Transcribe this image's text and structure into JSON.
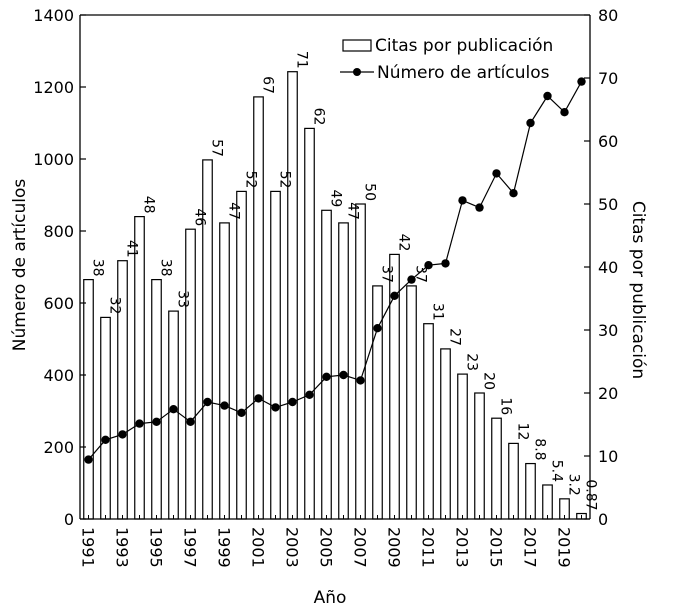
{
  "chart_data": {
    "type": "bar+line",
    "xlabel": "Año",
    "ylabel_left": "Número de artículos",
    "ylabel_right": "Citas por publicación",
    "ylim_left": [
      0,
      1400
    ],
    "ylim_right": [
      0,
      80
    ],
    "yticks_left": [
      "0",
      "200",
      "400",
      "600",
      "800",
      "1000",
      "1200",
      "1400"
    ],
    "yticks_right": [
      "0",
      "10",
      "20",
      "30",
      "40",
      "50",
      "60",
      "70",
      "80"
    ],
    "categories": [
      1991,
      1992,
      1993,
      1994,
      1995,
      1996,
      1997,
      1998,
      1999,
      2000,
      2001,
      2002,
      2003,
      2004,
      2005,
      2006,
      2007,
      2008,
      2009,
      2010,
      2011,
      2012,
      2013,
      2014,
      2015,
      2016,
      2017,
      2018,
      2019,
      2020
    ],
    "xtick_labels": [
      "1991",
      "1993",
      "1995",
      "1997",
      "1999",
      "2001",
      "2003",
      "2005",
      "2007",
      "2009",
      "2011",
      "2013",
      "2015",
      "2017",
      "2019"
    ],
    "legend": {
      "position": "top-right",
      "entries": [
        "Citas por publicación",
        "Número de artículos"
      ]
    },
    "series": [
      {
        "name": "Citas por publicación",
        "type": "bar",
        "axis": "right",
        "values": [
          38,
          32,
          41,
          48,
          38,
          33,
          46,
          57,
          47,
          52,
          67,
          52,
          71,
          62,
          49,
          47,
          50,
          37,
          42,
          37,
          31,
          27,
          23,
          20,
          16,
          12,
          8.8,
          5.4,
          3.2,
          0.87
        ],
        "labels": [
          "38",
          "32",
          "41",
          "48",
          "38",
          "33",
          "46",
          "57",
          "47",
          "52",
          "67",
          "52",
          "71",
          "62",
          "49",
          "47",
          "50",
          "37",
          "42",
          "37",
          "31",
          "27",
          "23",
          "20",
          "16",
          "12",
          "8.8",
          "5.4",
          "3.2",
          "0.87"
        ]
      },
      {
        "name": "Número de artículos",
        "type": "line",
        "axis": "left",
        "values": [
          165,
          220,
          235,
          265,
          270,
          305,
          270,
          325,
          315,
          295,
          335,
          310,
          325,
          345,
          395,
          400,
          385,
          530,
          620,
          665,
          705,
          710,
          885,
          865,
          960,
          905,
          1100,
          1175,
          1130,
          1215
        ]
      }
    ]
  }
}
